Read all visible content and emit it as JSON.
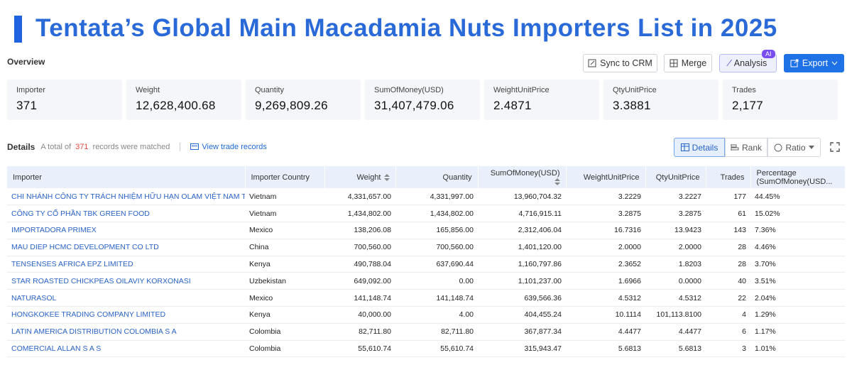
{
  "header": {
    "title": "Tentata’s Global Main Macadamia Nuts Importers List in 2025"
  },
  "overview": {
    "label": "Overview",
    "buttons": [
      "Sync to CRM",
      "Merge",
      "Analysis",
      "Export"
    ],
    "ai_badge": "AI",
    "stats": [
      {
        "label": "Importer",
        "value": "371"
      },
      {
        "label": "Weight",
        "value": "12,628,400.68"
      },
      {
        "label": "Quantity",
        "value": "9,269,809.26"
      },
      {
        "label": "SumOfMoney(USD)",
        "value": "31,407,479.06"
      },
      {
        "label": "WeightUnitPrice",
        "value": "2.4871"
      },
      {
        "label": "QtyUnitPrice",
        "value": "3.3881"
      },
      {
        "label": "Trades",
        "value": "2,177"
      }
    ]
  },
  "details": {
    "label": "Details",
    "summary_prefix": "A total of",
    "count": "371",
    "summary_suffix": "records were matched",
    "link": "View trade records",
    "tabs": [
      "Details",
      "Rank",
      "Ratio"
    ]
  },
  "table": {
    "columns": [
      "Importer",
      "Importer Country",
      "Weight",
      "Quantity",
      "SumOfMoney(USD)",
      "WeightUnitPrice",
      "QtyUnitPrice",
      "Trades",
      "Percentage (SumOfMoney(USD..."
    ],
    "rows": [
      [
        "CHI NHÁNH CÔNG TY TRÁCH NHIỆM HỮU HẠN OLAM VIỆT NAM TẠI K...",
        "Vietnam",
        "4,331,657.00",
        "4,331,997.00",
        "13,960,704.32",
        "3.2229",
        "3.2227",
        "177",
        "44.45%"
      ],
      [
        "CÔNG TY CỔ PHẦN TBK GREEN FOOD",
        "Vietnam",
        "1,434,802.00",
        "1,434,802.00",
        "4,716,915.11",
        "3.2875",
        "3.2875",
        "61",
        "15.02%"
      ],
      [
        "IMPORTADORA PRIMEX",
        "Mexico",
        "138,206.08",
        "165,856.00",
        "2,312,406.04",
        "16.7316",
        "13.9423",
        "143",
        "7.36%"
      ],
      [
        "MAU DIEP HCMC DEVELOPMENT CO LTD",
        "China",
        "700,560.00",
        "700,560.00",
        "1,401,120.00",
        "2.0000",
        "2.0000",
        "28",
        "4.46%"
      ],
      [
        "TENSENSES AFRICA EPZ LIMITED",
        "Kenya",
        "490,788.04",
        "637,690.44",
        "1,160,797.86",
        "2.3652",
        "1.8203",
        "28",
        "3.70%"
      ],
      [
        "STAR ROASTED CHICKPEAS OILAVIY KORXONASI",
        "Uzbekistan",
        "649,092.00",
        "0.00",
        "1,101,237.00",
        "1.6966",
        "0.0000",
        "40",
        "3.51%"
      ],
      [
        "NATURASOL",
        "Mexico",
        "141,148.74",
        "141,148.74",
        "639,566.36",
        "4.5312",
        "4.5312",
        "22",
        "2.04%"
      ],
      [
        "HONGKOKEE TRADING COMPANY LIMITED",
        "Kenya",
        "40,000.00",
        "4.00",
        "404,455.24",
        "10.1114",
        "101,113.8100",
        "4",
        "1.29%"
      ],
      [
        "LATIN AMERICA DISTRIBUTION COLOMBIA S A",
        "Colombia",
        "82,711.80",
        "82,711.80",
        "367,877.34",
        "4.4477",
        "4.4477",
        "6",
        "1.17%"
      ],
      [
        "COMERCIAL ALLAN S A S",
        "Colombia",
        "55,610.74",
        "55,610.74",
        "315,943.47",
        "5.6813",
        "5.6813",
        "3",
        "1.01%"
      ]
    ]
  }
}
